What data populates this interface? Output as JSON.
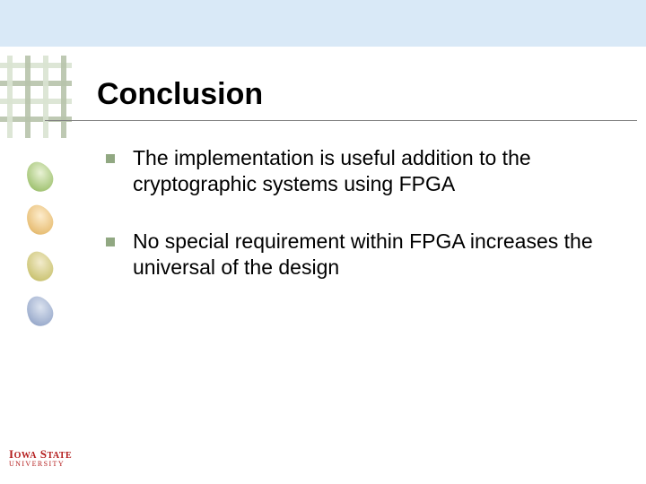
{
  "slide": {
    "title": "Conclusion",
    "title_fontsize": 34,
    "title_color": "#000000",
    "underline_color": "#808080",
    "top_band_color": "#d9e9f7",
    "background_color": "#ffffff",
    "bullet_color": "#91a882",
    "body_fontsize": 23,
    "body_color": "#000000",
    "bullets": [
      "The implementation is useful addition to the cryptographic systems using FPGA",
      "No special requirement within FPGA increases the universal of the design"
    ],
    "swoosh_colors": [
      "#9cc06a",
      "#e6b96a",
      "#c8c06a",
      "#94a6c9"
    ],
    "plaid_light": "#d9e3d2",
    "plaid_dark": "#b7c3ab"
  },
  "logo": {
    "line1_a": "I",
    "line1_b": "OWA",
    "line1_c": " S",
    "line1_d": "TATE",
    "line2": "UNIVERSITY",
    "color": "#b31b1b"
  }
}
